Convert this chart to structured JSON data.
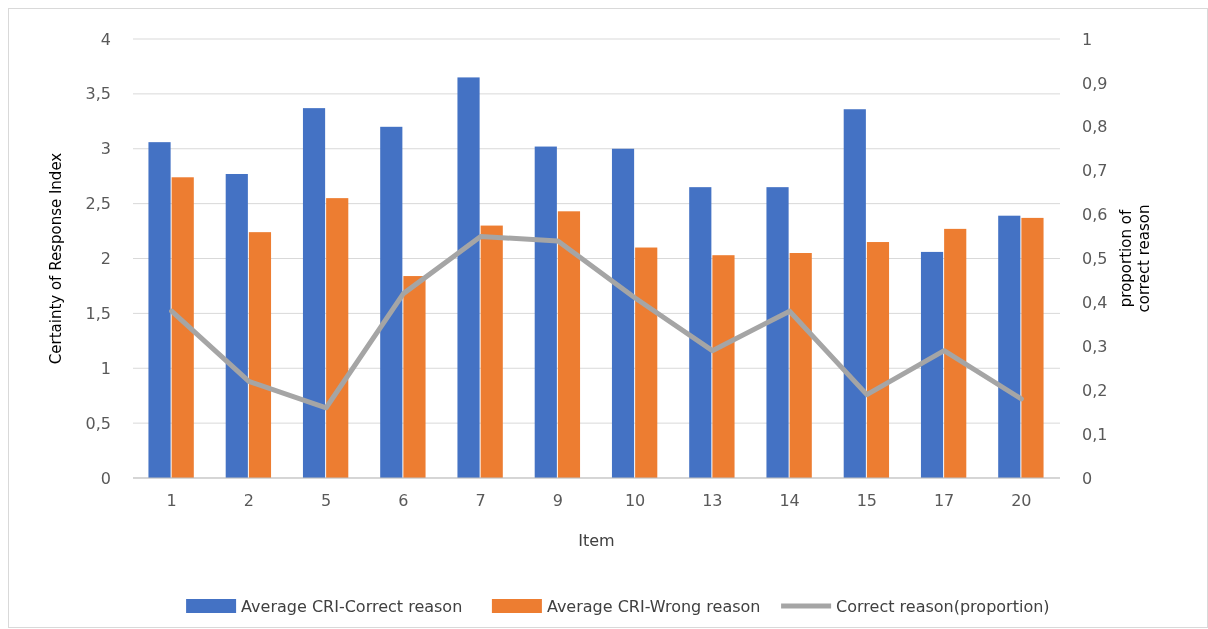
{
  "chart_data": {
    "type": "bar",
    "xlabel": "Item",
    "ylabel": "Certainty of Response Index",
    "y2label": "proportion of correct reason",
    "categories": [
      "1",
      "2",
      "5",
      "6",
      "7",
      "9",
      "10",
      "13",
      "14",
      "15",
      "17",
      "20"
    ],
    "series": [
      {
        "name": "Average CRI-Correct reason",
        "color": "#4472c4",
        "values": [
          3.06,
          2.77,
          3.37,
          3.2,
          3.65,
          3.02,
          3.0,
          2.65,
          2.65,
          3.36,
          2.06,
          2.39
        ]
      },
      {
        "name": "Average CRI-Wrong reason",
        "color": "#ed7d31",
        "values": [
          2.74,
          2.24,
          2.55,
          1.84,
          2.3,
          2.43,
          2.1,
          2.03,
          2.05,
          2.15,
          2.27,
          2.37
        ]
      },
      {
        "name": "Correct reason(proportion)",
        "type": "line",
        "axis": "y2",
        "color": "#a5a5a5",
        "values": [
          0.38,
          0.22,
          0.16,
          0.42,
          0.55,
          0.54,
          0.41,
          0.29,
          0.38,
          0.19,
          0.29,
          0.18
        ]
      }
    ],
    "ylim": [
      0,
      4
    ],
    "yticks": [
      0,
      {
        "value": 0.5,
        "label": "0,5"
      },
      1,
      {
        "value": 1.5,
        "label": "1,5"
      },
      2,
      {
        "value": 2.5,
        "label": "2,5"
      },
      3,
      {
        "value": 3.5,
        "label": "3,5"
      },
      4
    ],
    "y2lim": [
      0,
      1
    ],
    "y2ticks": [
      0,
      {
        "value": 0.1,
        "label": "0,1"
      },
      {
        "value": 0.2,
        "label": "0,2"
      },
      {
        "value": 0.3,
        "label": "0,3"
      },
      {
        "value": 0.4,
        "label": "0,4"
      },
      {
        "value": 0.5,
        "label": "0,5"
      },
      {
        "value": 0.6,
        "label": "0,6"
      },
      {
        "value": 0.7,
        "label": "0,7"
      },
      {
        "value": 0.8,
        "label": "0,8"
      },
      {
        "value": 0.9,
        "label": "0,9"
      },
      1
    ],
    "grid": "y",
    "legend": "bottom"
  }
}
